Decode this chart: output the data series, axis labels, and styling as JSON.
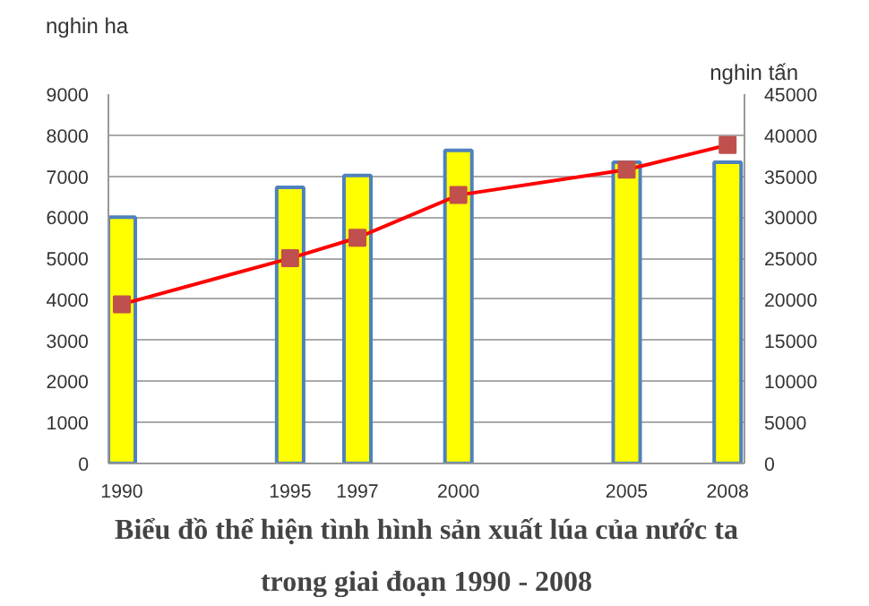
{
  "chart_data": {
    "type": "bar",
    "title": "Biểu đồ thể hiện tình hình sản xuất lúa của nước ta\ntrong giai đoạn 1990 - 2008",
    "ylabel": "nghin ha",
    "y2label": "nghin tấn",
    "x": [
      1990,
      1995,
      1997,
      2000,
      2005,
      2008
    ],
    "series": [
      {
        "color": "#ffff00",
        "values": [
          6000,
          6730,
          7020,
          7630,
          7340,
          7340
        ]
      },
      {
        "type": "line",
        "axis": "y2",
        "color": "#ff0000",
        "marker": "square",
        "values": [
          19400,
          25000,
          27500,
          32700,
          35800,
          38800
        ]
      }
    ],
    "xlim": [
      1989.6,
      2008.5
    ],
    "xticks": [
      1990,
      1995,
      1997,
      2000,
      2005,
      2008
    ],
    "ylim": [
      0,
      9000
    ],
    "yticks": [
      0,
      1000,
      2000,
      3000,
      4000,
      5000,
      6000,
      7000,
      8000,
      9000
    ],
    "y2lim": [
      0,
      45000
    ],
    "y2ticks": [
      0,
      5000,
      10000,
      15000,
      20000,
      25000,
      30000,
      35000,
      40000,
      45000
    ],
    "grid": "y"
  }
}
